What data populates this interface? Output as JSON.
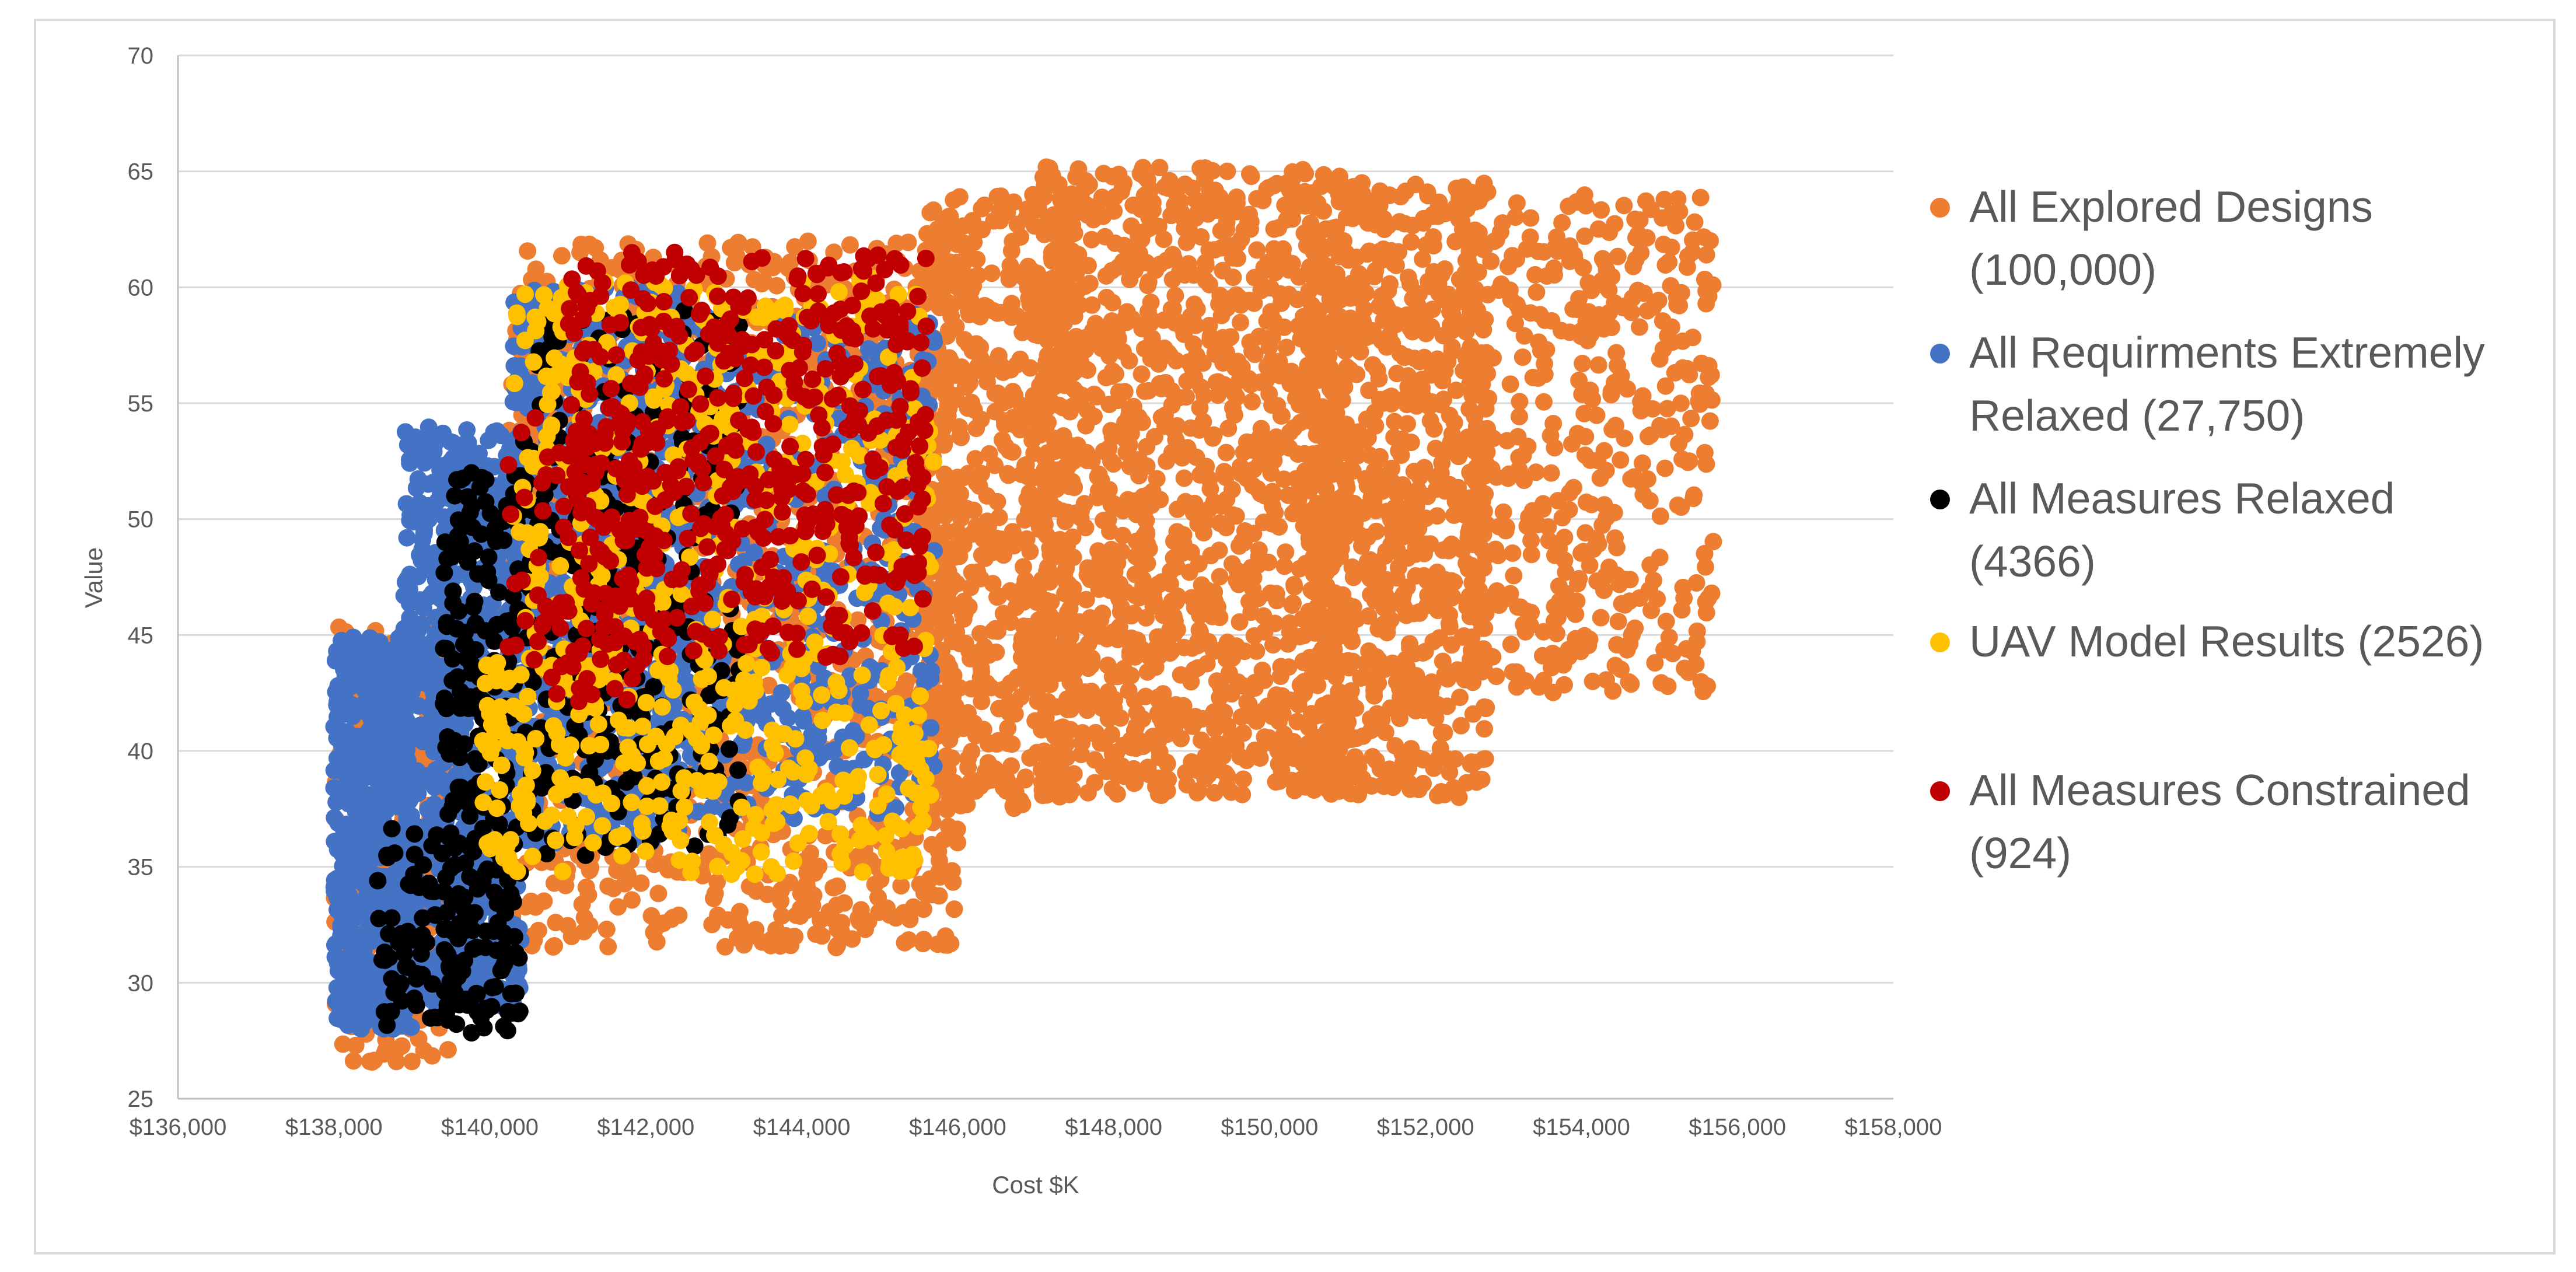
{
  "chart_data": {
    "type": "scatter",
    "title": "",
    "xlabel": "Cost $K",
    "ylabel": "Value",
    "xlim": [
      136000,
      158000
    ],
    "ylim": [
      25,
      70
    ],
    "x_ticks": [
      136000,
      138000,
      140000,
      142000,
      144000,
      146000,
      148000,
      150000,
      152000,
      154000,
      156000,
      158000
    ],
    "x_tick_labels": [
      "$136,000",
      "$138,000",
      "$140,000",
      "$142,000",
      "$144,000",
      "$146,000",
      "$148,000",
      "$150,000",
      "$152,000",
      "$154,000",
      "$156,000",
      "$158,000"
    ],
    "y_ticks": [
      25,
      30,
      35,
      40,
      45,
      50,
      55,
      60,
      65,
      70
    ],
    "y_tick_labels": [
      "25",
      "30",
      "35",
      "40",
      "45",
      "50",
      "55",
      "60",
      "65",
      "70"
    ],
    "grid": "horizontal",
    "legend_position": "right",
    "series": [
      {
        "name": "All Explored Designs (100,000)",
        "legend_lines": [
          "All Explored Designs",
          "(100,000)"
        ],
        "color": "#ED7D31",
        "regions": [
          {
            "x": [
              138000,
              139500
            ],
            "y": [
              26.5,
              45.5
            ],
            "n": 250
          },
          {
            "x": [
              140200,
              146000
            ],
            "y": [
              31.5,
              62
            ],
            "n": 1300
          },
          {
            "x": [
              145500,
              147500
            ],
            "y": [
              37.5,
              64
            ],
            "n": 650
          },
          {
            "x": [
              147000,
              151000
            ],
            "y": [
              38,
              65.2
            ],
            "n": 1300
          },
          {
            "x": [
              150500,
              152800
            ],
            "y": [
              38,
              64.5
            ],
            "n": 800
          },
          {
            "x": [
              152500,
              155700
            ],
            "y": [
              42.5,
              64
            ],
            "n": 450
          }
        ]
      },
      {
        "name": "All Requirments Extremely Relaxed (27,750)",
        "legend_lines": [
          "All Requirments Extremely",
          "Relaxed (27,750)"
        ],
        "color": "#4472C4",
        "regions": [
          {
            "x": [
              138000,
              139000
            ],
            "y": [
              28,
              45
            ],
            "n": 600
          },
          {
            "x": [
              138900,
              140400
            ],
            "y": [
              29,
              54
            ],
            "n": 700
          },
          {
            "x": [
              140300,
              142500
            ],
            "y": [
              36,
              60
            ],
            "n": 700
          },
          {
            "x": [
              142500,
              145700
            ],
            "y": [
              37,
              59
            ],
            "n": 500
          }
        ]
      },
      {
        "name": "All Measures Relaxed (4366)",
        "legend_lines": [
          "All Measures Relaxed",
          "(4366)"
        ],
        "color": "#000000",
        "regions": [
          {
            "x": [
              138500,
              139700
            ],
            "y": [
              28,
              37
            ],
            "n": 80
          },
          {
            "x": [
              139400,
              140400
            ],
            "y": [
              27.8,
              52
            ],
            "n": 260
          },
          {
            "x": [
              140400,
              143200
            ],
            "y": [
              35.5,
              59
            ],
            "n": 360
          }
        ]
      },
      {
        "name": "UAV Model Results (2526)",
        "legend_lines": [
          "UAV Model Results (2526)"
        ],
        "color": "#FFC000",
        "regions": [
          {
            "x": [
              139900,
              140300
            ],
            "y": [
              35,
              44
            ],
            "n": 40
          },
          {
            "x": [
              140300,
              145700
            ],
            "y": [
              34.5,
              60.5
            ],
            "n": 650
          }
        ]
      },
      {
        "name": "All Measures Constrained (924)",
        "legend_lines": [
          "All Measures Constrained",
          "(924)"
        ],
        "color": "#C00000",
        "regions": [
          {
            "x": [
              140200,
              142000
            ],
            "y": [
              42,
              55
            ],
            "n": 80
          },
          {
            "x": [
              141000,
              145600
            ],
            "y": [
              44,
              61.5
            ],
            "n": 520
          }
        ]
      }
    ]
  }
}
